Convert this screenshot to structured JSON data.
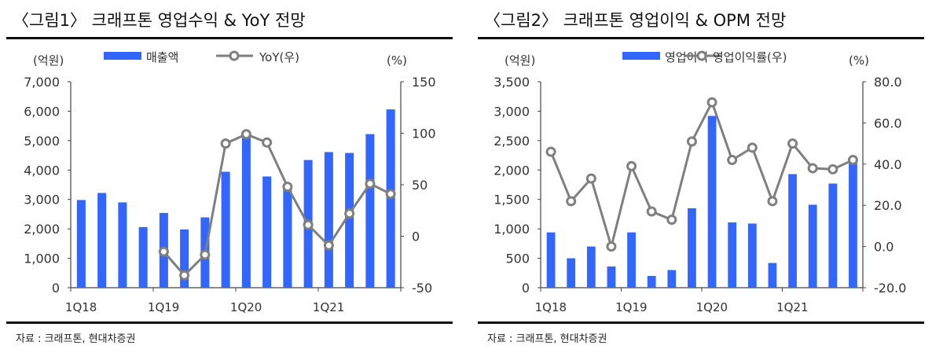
{
  "chart_data": [
    {
      "type": "bar+line",
      "title": "〈그림1〉 크래프톤 영업수익 & YoY 전망",
      "left_unit": "(억원)",
      "right_unit": "(%)",
      "categories": [
        "1Q18",
        "2Q18",
        "3Q18",
        "4Q18",
        "1Q19",
        "2Q19",
        "3Q19",
        "4Q19",
        "1Q20",
        "2Q20",
        "3Q20",
        "4Q20",
        "1Q21",
        "2Q21",
        "3Q21",
        "4Q21"
      ],
      "xtick_labels": [
        "1Q18",
        "1Q19",
        "1Q20",
        "1Q21"
      ],
      "yleft": {
        "ticks": [
          "0",
          "1,000",
          "2,000",
          "3,000",
          "4,000",
          "5,000",
          "6,000",
          "7,000"
        ],
        "lim": [
          0,
          7000
        ]
      },
      "yright": {
        "ticks": [
          "-50",
          "0",
          "50",
          "100",
          "150"
        ],
        "lim": [
          -50,
          150
        ]
      },
      "series": [
        {
          "name": "매출액",
          "type": "bar",
          "axis": "left",
          "color": "#3366ff",
          "values": [
            2980,
            3220,
            2900,
            2060,
            2540,
            1980,
            2390,
            3940,
            5150,
            3780,
            3480,
            4340,
            4610,
            4580,
            5220,
            6060
          ]
        },
        {
          "name": "YoY(우)",
          "type": "line",
          "axis": "right",
          "color": "#7f7f7f",
          "values": [
            null,
            null,
            null,
            null,
            -15,
            -38,
            -18,
            90,
            99,
            91,
            48,
            11,
            -9,
            22,
            51,
            41
          ]
        }
      ],
      "source": "자료 : 크래프톤, 현대차증권"
    },
    {
      "type": "bar+line",
      "title": "〈그림2〉 크래프톤 영업이익 & OPM 전망",
      "left_unit": "(억원)",
      "right_unit": "(%)",
      "categories": [
        "1Q18",
        "2Q18",
        "3Q18",
        "4Q18",
        "1Q19",
        "2Q19",
        "3Q19",
        "4Q19",
        "1Q20",
        "2Q20",
        "3Q20",
        "4Q20",
        "1Q21",
        "2Q21",
        "3Q21",
        "4Q21"
      ],
      "xtick_labels": [
        "1Q18",
        "1Q19",
        "1Q20",
        "1Q21"
      ],
      "yleft": {
        "ticks": [
          "0",
          "500",
          "1,000",
          "1,500",
          "2,000",
          "2,500",
          "3,000",
          "3,500"
        ],
        "lim": [
          0,
          3500
        ]
      },
      "yright": {
        "ticks": [
          "-20.0",
          "0.0",
          "20.0",
          "40.0",
          "60.0",
          "80.0"
        ],
        "lim": [
          -20,
          80
        ]
      },
      "series": [
        {
          "name": "영업이익",
          "type": "bar",
          "axis": "left",
          "color": "#3366ff",
          "values": [
            940,
            500,
            700,
            360,
            940,
            200,
            300,
            1350,
            2920,
            1110,
            1090,
            420,
            1930,
            1410,
            1770,
            2130
          ]
        },
        {
          "name": "영업이익률(우)",
          "type": "line",
          "axis": "right",
          "color": "#7f7f7f",
          "values": [
            46,
            22,
            33,
            0,
            39,
            17,
            13,
            51,
            70,
            42,
            48,
            22,
            50,
            38,
            37.5,
            42
          ]
        }
      ],
      "source": "자료 : 크래프톤, 현대차증권"
    }
  ]
}
